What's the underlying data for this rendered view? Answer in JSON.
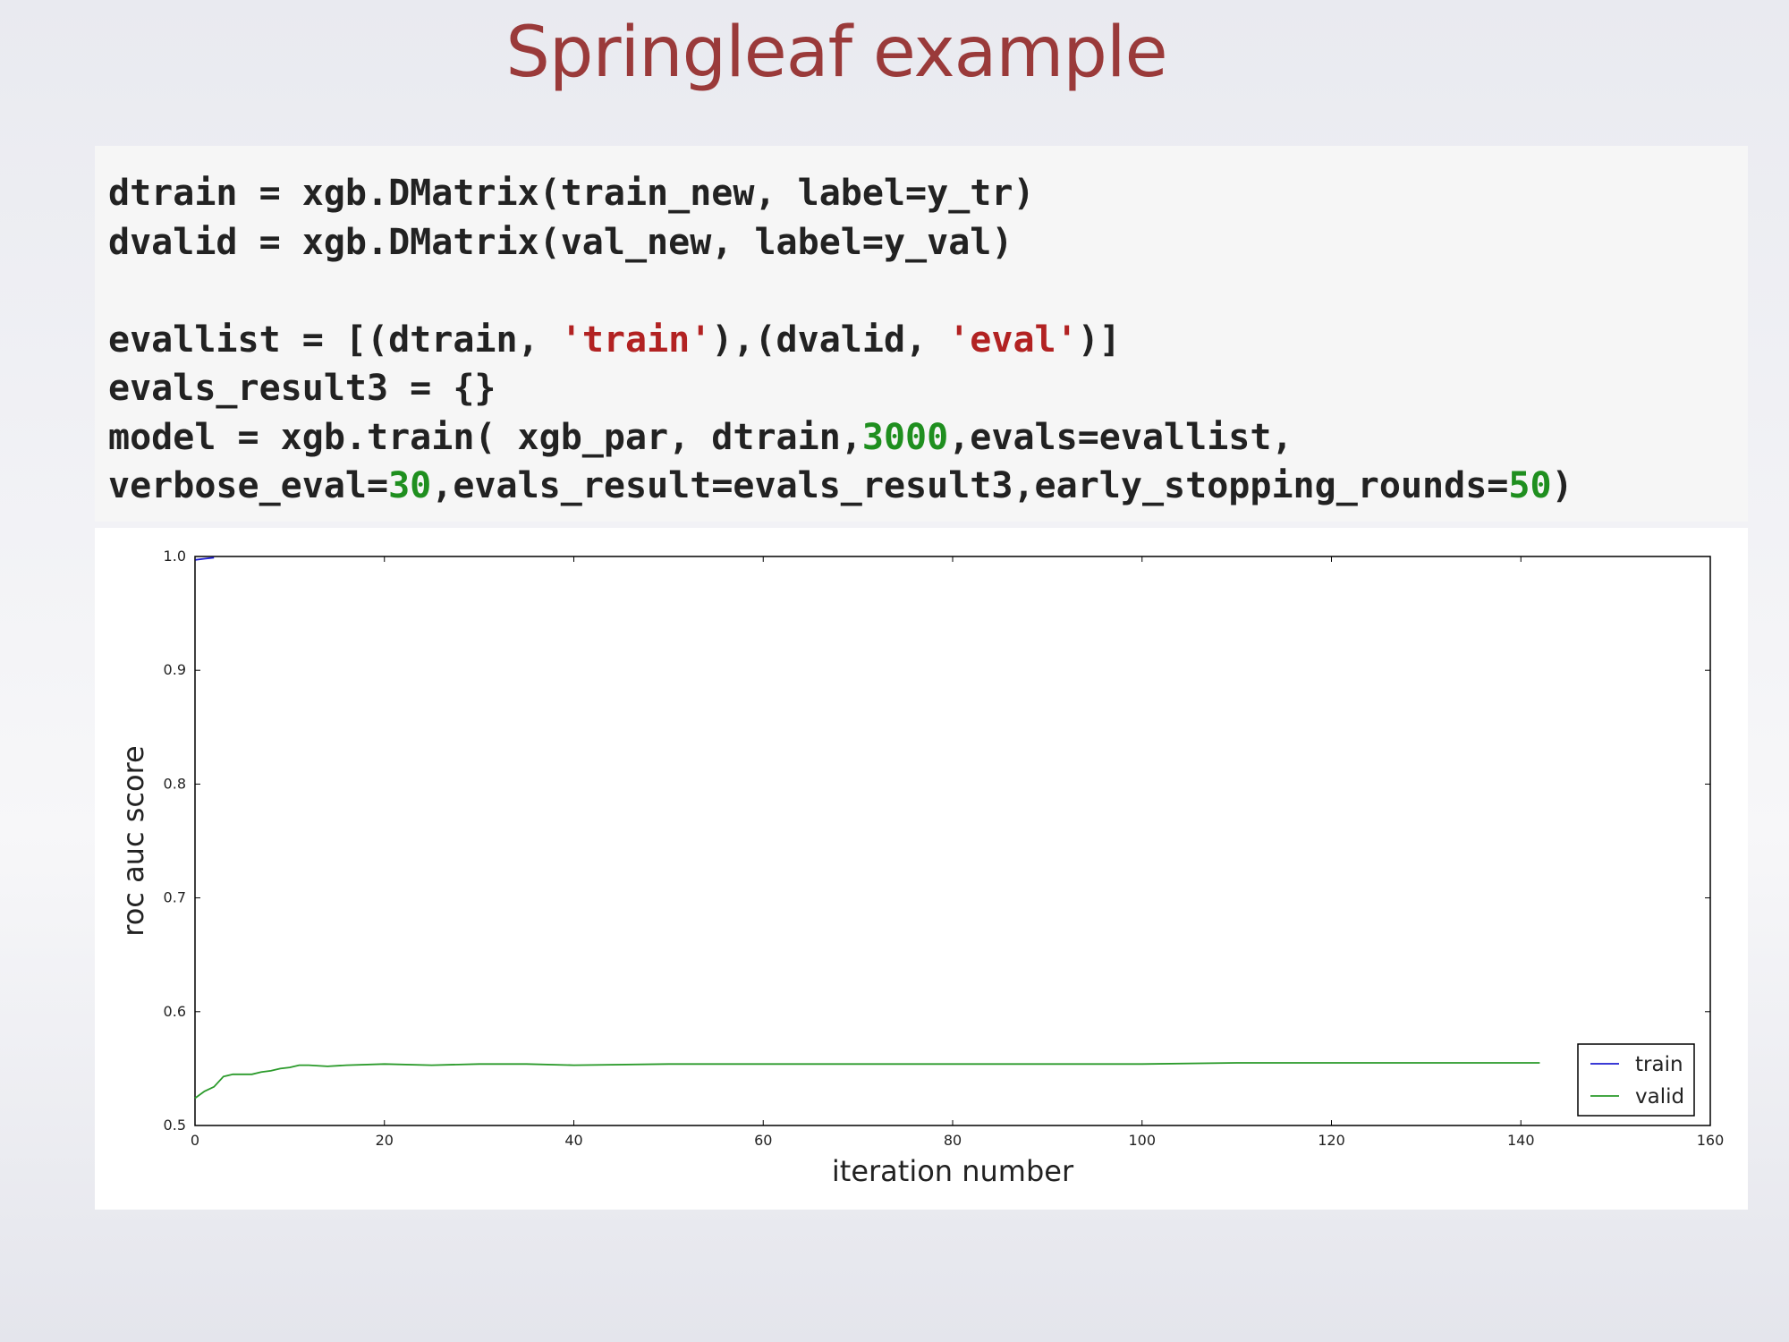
{
  "slide": {
    "title": "Springleaf example"
  },
  "code": {
    "line1": "dtrain = xgb.DMatrix(train_new, label=y_tr)",
    "line2": "dvalid = xgb.DMatrix(val_new, label=y_val)",
    "line3": {
      "p1": "evallist = [(dtrain, ",
      "s1": "'train'",
      "p2": "),(dvalid, ",
      "s2": "'eval'",
      "p3": ")]"
    },
    "line4": "evals_result3 = {}",
    "line5": {
      "p1": "model = xgb.train( xgb_par, dtrain,",
      "n1": "3000",
      "p2": ",evals=evallist,"
    },
    "line6": {
      "p1": "verbose_eval=",
      "n1": "30",
      "p2": ",evals_result=evals_result3,early_stopping_rounds=",
      "n2": "50",
      "p3": ")"
    },
    "colors": {
      "text": "#222222",
      "string": "#b22222",
      "number": "#1f8f1f"
    }
  },
  "chart_data": {
    "type": "line",
    "xlabel": "iteration number",
    "ylabel": "roc auc score",
    "xlim": [
      0,
      160
    ],
    "ylim": [
      0.5,
      1.0
    ],
    "xticks": [
      "0",
      "20",
      "40",
      "60",
      "80",
      "100",
      "120",
      "140",
      "160"
    ],
    "yticks": [
      "0.5",
      "0.6",
      "0.7",
      "0.8",
      "0.9",
      "1.0"
    ],
    "grid": false,
    "legend_position": "lower-right",
    "series": [
      {
        "name": "train",
        "color": "#1f1fd0",
        "x": [
          0,
          1,
          2
        ],
        "y": [
          0.997,
          0.998,
          0.999
        ]
      },
      {
        "name": "valid",
        "color": "#2a9a2a",
        "x": [
          0,
          1,
          2,
          3,
          4,
          5,
          6,
          7,
          8,
          9,
          10,
          11,
          12,
          14,
          16,
          20,
          25,
          30,
          35,
          40,
          50,
          60,
          70,
          80,
          90,
          100,
          110,
          120,
          130,
          142
        ],
        "y": [
          0.524,
          0.53,
          0.534,
          0.543,
          0.545,
          0.545,
          0.545,
          0.547,
          0.548,
          0.55,
          0.551,
          0.553,
          0.553,
          0.552,
          0.553,
          0.554,
          0.553,
          0.554,
          0.554,
          0.553,
          0.554,
          0.554,
          0.554,
          0.554,
          0.554,
          0.554,
          0.555,
          0.555,
          0.555,
          0.555
        ]
      }
    ]
  }
}
